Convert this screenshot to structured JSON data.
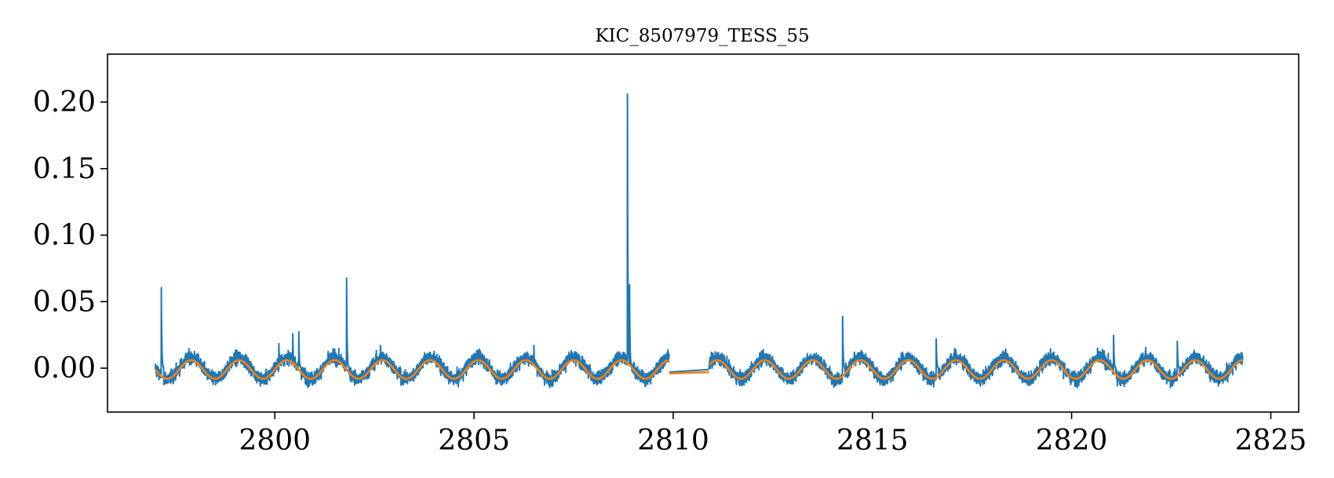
{
  "chart_data": {
    "type": "line",
    "title": "KIC_8507979_TESS_55",
    "xlabel": "",
    "ylabel": "",
    "xlim": [
      2795.8,
      2825.7
    ],
    "ylim": [
      -0.033,
      0.236
    ],
    "xticks": [
      2800,
      2805,
      2810,
      2815,
      2820,
      2825
    ],
    "xtick_labels": [
      "2800",
      "2805",
      "2810",
      "2815",
      "2820",
      "2825"
    ],
    "yticks": [
      0.0,
      0.05,
      0.1,
      0.15,
      0.2
    ],
    "ytick_labels": [
      "0.00",
      "0.05",
      "0.10",
      "0.15",
      "0.20"
    ],
    "grid": false,
    "legend": "none",
    "series": [
      {
        "color": "#1f77b4",
        "segments": [
          [
            2797.0,
            2809.9
          ],
          [
            2810.9,
            2824.3
          ]
        ],
        "period": 1.2,
        "amplitude": 0.008,
        "noise": 0.005,
        "flares": [
          {
            "x": 2797.15,
            "y": 0.063
          },
          {
            "x": 2800.1,
            "y": 0.02
          },
          {
            "x": 2800.45,
            "y": 0.028
          },
          {
            "x": 2800.6,
            "y": 0.031
          },
          {
            "x": 2801.8,
            "y": 0.08
          },
          {
            "x": 2802.65,
            "y": 0.021
          },
          {
            "x": 2806.5,
            "y": 0.021
          },
          {
            "x": 2808.85,
            "y": 0.224
          },
          {
            "x": 2808.9,
            "y": 0.084
          },
          {
            "x": 2814.25,
            "y": 0.05
          },
          {
            "x": 2816.6,
            "y": 0.025
          },
          {
            "x": 2821.05,
            "y": 0.033
          },
          {
            "x": 2822.65,
            "y": 0.026
          }
        ],
        "gap_bridge": [
          [
            2809.9,
            -0.003
          ],
          [
            2810.9,
            -0.001
          ]
        ]
      },
      {
        "color": "#ff7f0e",
        "period": 1.2,
        "amplitude": 0.007,
        "smooth": true,
        "gap_bridge": [
          [
            2809.9,
            -0.004
          ],
          [
            2810.9,
            -0.003
          ]
        ]
      }
    ]
  }
}
